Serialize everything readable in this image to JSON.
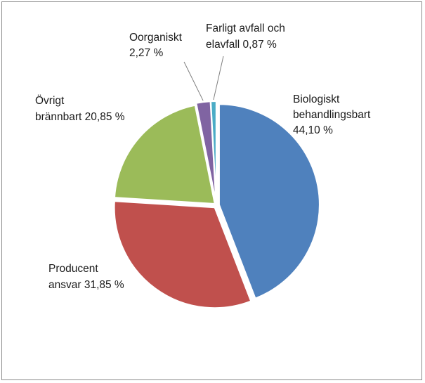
{
  "chart_data": {
    "type": "pie",
    "title": "",
    "legend": "none",
    "slices": [
      {
        "label_lines": [
          "Biologiskt",
          "behandlingsbart",
          "44,10 %"
        ],
        "value": 44.1,
        "color": "#4f81bd"
      },
      {
        "label_lines": [
          "Producent",
          "ansvar 31,85 %"
        ],
        "value": 31.85,
        "color": "#c0504d"
      },
      {
        "label_lines": [
          "Övrigt",
          "brännbart  20,85 %"
        ],
        "value": 20.85,
        "color": "#9bbb59"
      },
      {
        "label_lines": [
          "Oorganiskt",
          "2,27 %"
        ],
        "value": 2.27,
        "color": "#8064a2"
      },
      {
        "label_lines": [
          "Farligt avfall och",
          "elavfall 0,87 %"
        ],
        "value": 0.87,
        "color": "#4bacc6"
      }
    ]
  }
}
